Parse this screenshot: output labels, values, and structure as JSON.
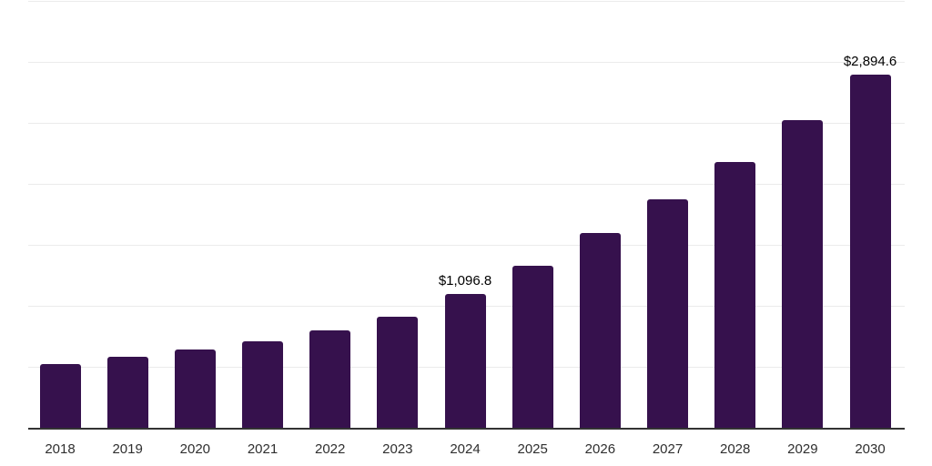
{
  "chart_data": {
    "type": "bar",
    "title": "",
    "xlabel": "",
    "ylabel": "",
    "categories": [
      "2018",
      "2019",
      "2020",
      "2021",
      "2022",
      "2023",
      "2024",
      "2025",
      "2026",
      "2027",
      "2028",
      "2029",
      "2030"
    ],
    "values": [
      522,
      581,
      641,
      708,
      797,
      911,
      1096.8,
      1328,
      1594,
      1870,
      2181,
      2520,
      2894.6
    ],
    "data_labels": [
      null,
      null,
      null,
      null,
      null,
      null,
      "$1,096.8",
      null,
      null,
      null,
      null,
      null,
      "$2,894.6"
    ],
    "ylim": [
      0,
      3500
    ],
    "gridline_step": 500,
    "grid": true,
    "legend": false,
    "colors": {
      "bar": "#36114d",
      "gridline": "#ebebeb",
      "axis_line": "#333333",
      "tick_label": "#2f2f2f",
      "data_label": "#000000",
      "background": "#ffffff"
    }
  }
}
